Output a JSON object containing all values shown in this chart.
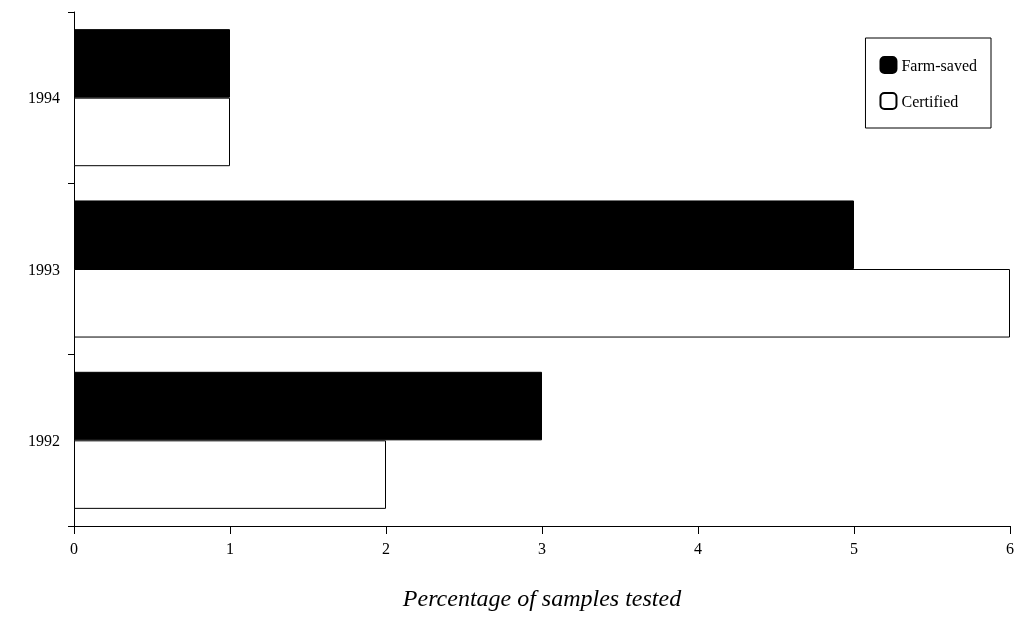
{
  "chart_data": {
    "type": "bar",
    "orientation": "horizontal",
    "xlabel": "Percentage of samples tested",
    "categories": [
      "1994",
      "1993",
      "1992"
    ],
    "series": [
      {
        "name": "Farm-saved",
        "color": "#000000",
        "values": [
          1,
          5,
          3
        ]
      },
      {
        "name": "Certified",
        "color": "#ffffff",
        "values": [
          1,
          6,
          2
        ]
      }
    ],
    "xlim": [
      0,
      6
    ],
    "xticks": [
      0,
      1,
      2,
      3,
      4,
      5,
      6
    ],
    "grid": false,
    "legend": "top right"
  }
}
